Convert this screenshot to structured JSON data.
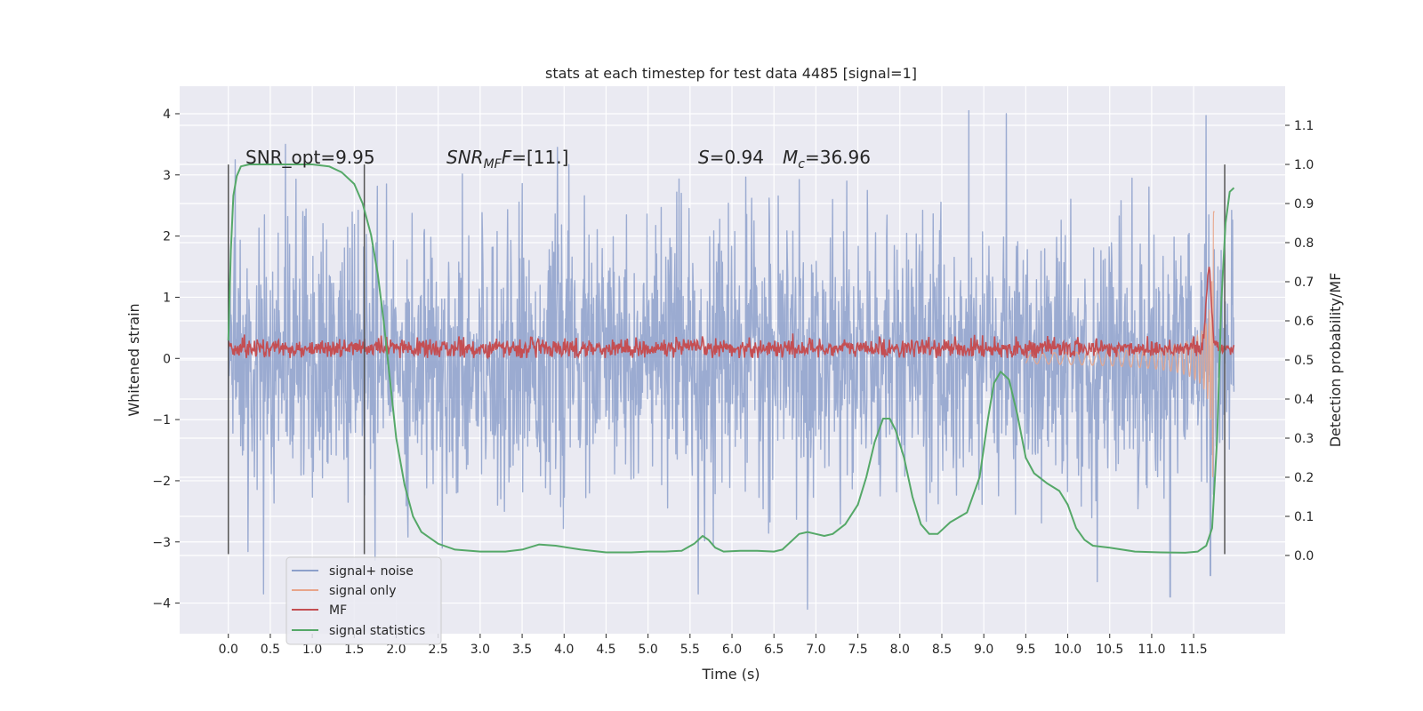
{
  "chart_data": {
    "type": "line",
    "title": "stats at each timestep for test data 4485 [signal=1]",
    "xlabel": "Time (s)",
    "ylabel": "Whitened strain",
    "y2label": "Detection probability/MF",
    "xlim": [
      -0.58,
      12.59
    ],
    "ylim": [
      -4.5,
      4.45
    ],
    "y2lim": [
      -0.2,
      1.2
    ],
    "x_ticks": [
      0.0,
      0.5,
      1.0,
      1.5,
      2.0,
      2.5,
      3.0,
      3.5,
      4.0,
      4.5,
      5.0,
      5.5,
      6.0,
      6.5,
      7.0,
      7.5,
      8.0,
      8.5,
      9.0,
      9.5,
      10.0,
      10.5,
      11.0,
      11.5
    ],
    "x_tick_labels": [
      "0.0",
      "0.5",
      "1.0",
      "1.5",
      "2.0",
      "2.5",
      "3.0",
      "3.5",
      "4.0",
      "4.5",
      "5.0",
      "5.5",
      "6.0",
      "6.5",
      "7.0",
      "7.5",
      "8.0",
      "8.5",
      "9.0",
      "9.5",
      "10.0",
      "10.5",
      "11.0",
      "11.5"
    ],
    "y_ticks": [
      4,
      3,
      2,
      1,
      0,
      -1,
      -2,
      -3,
      -4
    ],
    "y_tick_labels": [
      "4",
      "3",
      "2",
      "1",
      "0",
      "−1",
      "−2",
      "−3",
      "−4"
    ],
    "y2_ticks": [
      1.1,
      1.0,
      0.9,
      0.8,
      0.7,
      0.6,
      0.5,
      0.4,
      0.3,
      0.2,
      0.1,
      0.0
    ],
    "y2_tick_labels": [
      "1.1",
      "1.0",
      "0.9",
      "0.8",
      "0.7",
      "0.6",
      "0.5",
      "0.4",
      "0.3",
      "0.2",
      "0.1",
      "0.0"
    ],
    "grid": true,
    "legend_position": "lower-left",
    "annotations": {
      "snr_opt": "SNR_opt=9.95",
      "snr_mf": "SNR",
      "snr_mf_sub": "MF",
      "snr_mf_val": "=[11.]",
      "s_sym": "S",
      "s_val": "=0.94",
      "mc_sym": "M",
      "mc_sub": "c",
      "mc_val": "=36.96"
    },
    "vertical_markers": [
      0.0,
      1.62,
      11.87
    ],
    "series": [
      {
        "name": "signal+ noise",
        "color": "#8da0cb",
        "axis": "left",
        "description_of_values": "noise-like whitened strain; envelope roughly ±2 with spikes to ±4",
        "x_range": [
          0.0,
          11.98
        ],
        "peaks": [
          {
            "x": 0.42,
            "y": -3.85
          },
          {
            "x": 0.68,
            "y": 3.5
          },
          {
            "x": 1.75,
            "y": -3.3
          },
          {
            "x": 2.55,
            "y": -3.1
          },
          {
            "x": 3.92,
            "y": 3.45
          },
          {
            "x": 5.6,
            "y": -3.85
          },
          {
            "x": 6.9,
            "y": -4.1
          },
          {
            "x": 8.82,
            "y": 4.05
          },
          {
            "x": 9.27,
            "y": 4.0
          },
          {
            "x": 10.35,
            "y": -3.65
          },
          {
            "x": 11.22,
            "y": -3.9
          },
          {
            "x": 11.65,
            "y": 3.97
          },
          {
            "x": 11.7,
            "y": -3.55
          }
        ]
      },
      {
        "name": "signal only",
        "color": "#e8a58a",
        "axis": "left",
        "description_of_values": "chirp waveform growing in amplitude to merger near t=11.7 s",
        "x_range": [
          9.5,
          11.75
        ],
        "peak_amplitude": 2.4
      },
      {
        "name": "MF",
        "color": "#c44e52",
        "axis": "right",
        "description_of_values": "matched-filter output hovering around 0.52-0.55 with a spike near 11.68 s",
        "baseline": 0.53,
        "spike": {
          "x": 11.68,
          "y": 0.73
        }
      },
      {
        "name": "signal statistics",
        "color": "#55a868",
        "axis": "right",
        "x": [
          0.0,
          0.03,
          0.06,
          0.1,
          0.15,
          0.25,
          0.4,
          0.6,
          0.8,
          1.0,
          1.2,
          1.35,
          1.5,
          1.6,
          1.7,
          1.78,
          1.85,
          1.9,
          1.95,
          2.0,
          2.1,
          2.2,
          2.3,
          2.5,
          2.7,
          3.0,
          3.3,
          3.5,
          3.7,
          3.9,
          4.2,
          4.5,
          4.8,
          5.0,
          5.2,
          5.4,
          5.55,
          5.65,
          5.72,
          5.8,
          5.9,
          6.1,
          6.3,
          6.5,
          6.6,
          6.7,
          6.8,
          6.9,
          7.0,
          7.1,
          7.2,
          7.35,
          7.5,
          7.6,
          7.7,
          7.8,
          7.88,
          7.95,
          8.05,
          8.15,
          8.25,
          8.35,
          8.45,
          8.6,
          8.8,
          8.95,
          9.05,
          9.12,
          9.2,
          9.3,
          9.4,
          9.5,
          9.6,
          9.75,
          9.9,
          10.0,
          10.1,
          10.2,
          10.3,
          10.5,
          10.8,
          11.1,
          11.4,
          11.55,
          11.65,
          11.72,
          11.78,
          11.83,
          11.88,
          11.93,
          11.98
        ],
        "y": [
          0.55,
          0.78,
          0.92,
          0.97,
          0.995,
          1.0,
          1.0,
          1.0,
          1.0,
          1.0,
          0.995,
          0.98,
          0.95,
          0.9,
          0.82,
          0.72,
          0.6,
          0.5,
          0.4,
          0.3,
          0.18,
          0.1,
          0.06,
          0.03,
          0.015,
          0.01,
          0.01,
          0.015,
          0.028,
          0.025,
          0.015,
          0.008,
          0.008,
          0.01,
          0.01,
          0.012,
          0.03,
          0.05,
          0.04,
          0.02,
          0.01,
          0.012,
          0.012,
          0.01,
          0.015,
          0.035,
          0.055,
          0.06,
          0.055,
          0.05,
          0.055,
          0.08,
          0.13,
          0.2,
          0.29,
          0.35,
          0.35,
          0.32,
          0.25,
          0.15,
          0.08,
          0.055,
          0.055,
          0.085,
          0.11,
          0.2,
          0.35,
          0.44,
          0.47,
          0.45,
          0.36,
          0.25,
          0.21,
          0.185,
          0.165,
          0.13,
          0.07,
          0.04,
          0.025,
          0.02,
          0.01,
          0.008,
          0.007,
          0.01,
          0.025,
          0.07,
          0.3,
          0.65,
          0.85,
          0.93,
          0.94
        ]
      }
    ]
  }
}
